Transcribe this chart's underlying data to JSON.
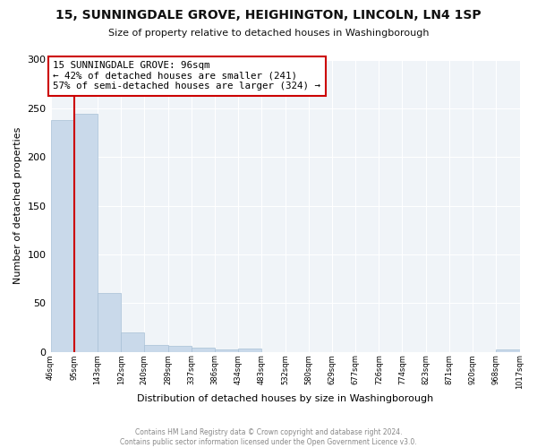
{
  "title": "15, SUNNINGDALE GROVE, HEIGHINGTON, LINCOLN, LN4 1SP",
  "subtitle": "Size of property relative to detached houses in Washingborough",
  "xlabel": "Distribution of detached houses by size in Washingborough",
  "ylabel": "Number of detached properties",
  "bin_edges": [
    46,
    95,
    143,
    192,
    240,
    289,
    337,
    386,
    434,
    483,
    532,
    580,
    629,
    677,
    726,
    774,
    823,
    871,
    920,
    968,
    1017
  ],
  "bar_heights": [
    238,
    244,
    60,
    20,
    7,
    6,
    4,
    2,
    3,
    0,
    0,
    0,
    0,
    0,
    0,
    0,
    0,
    0,
    0,
    2
  ],
  "bar_color": "#c9d9ea",
  "bar_edge_color": "#a8c0d6",
  "property_line_x": 95,
  "property_line_color": "#cc0000",
  "annotation_box_edge_color": "#cc0000",
  "annotation_line1": "15 SUNNINGDALE GROVE: 96sqm",
  "annotation_line2": "← 42% of detached houses are smaller (241)",
  "annotation_line3": "57% of semi-detached houses are larger (324) →",
  "ylim": [
    0,
    300
  ],
  "yticks": [
    0,
    50,
    100,
    150,
    200,
    250,
    300
  ],
  "xtick_labels": [
    "46sqm",
    "95sqm",
    "143sqm",
    "192sqm",
    "240sqm",
    "289sqm",
    "337sqm",
    "386sqm",
    "434sqm",
    "483sqm",
    "532sqm",
    "580sqm",
    "629sqm",
    "677sqm",
    "726sqm",
    "774sqm",
    "823sqm",
    "871sqm",
    "920sqm",
    "968sqm",
    "1017sqm"
  ],
  "footer_line1": "Contains HM Land Registry data © Crown copyright and database right 2024.",
  "footer_line2": "Contains public sector information licensed under the Open Government Licence v3.0.",
  "background_color": "#ffffff",
  "plot_background_color": "#f0f4f8",
  "grid_color": "#ffffff",
  "figsize": [
    6.0,
    5.0
  ],
  "dpi": 100
}
